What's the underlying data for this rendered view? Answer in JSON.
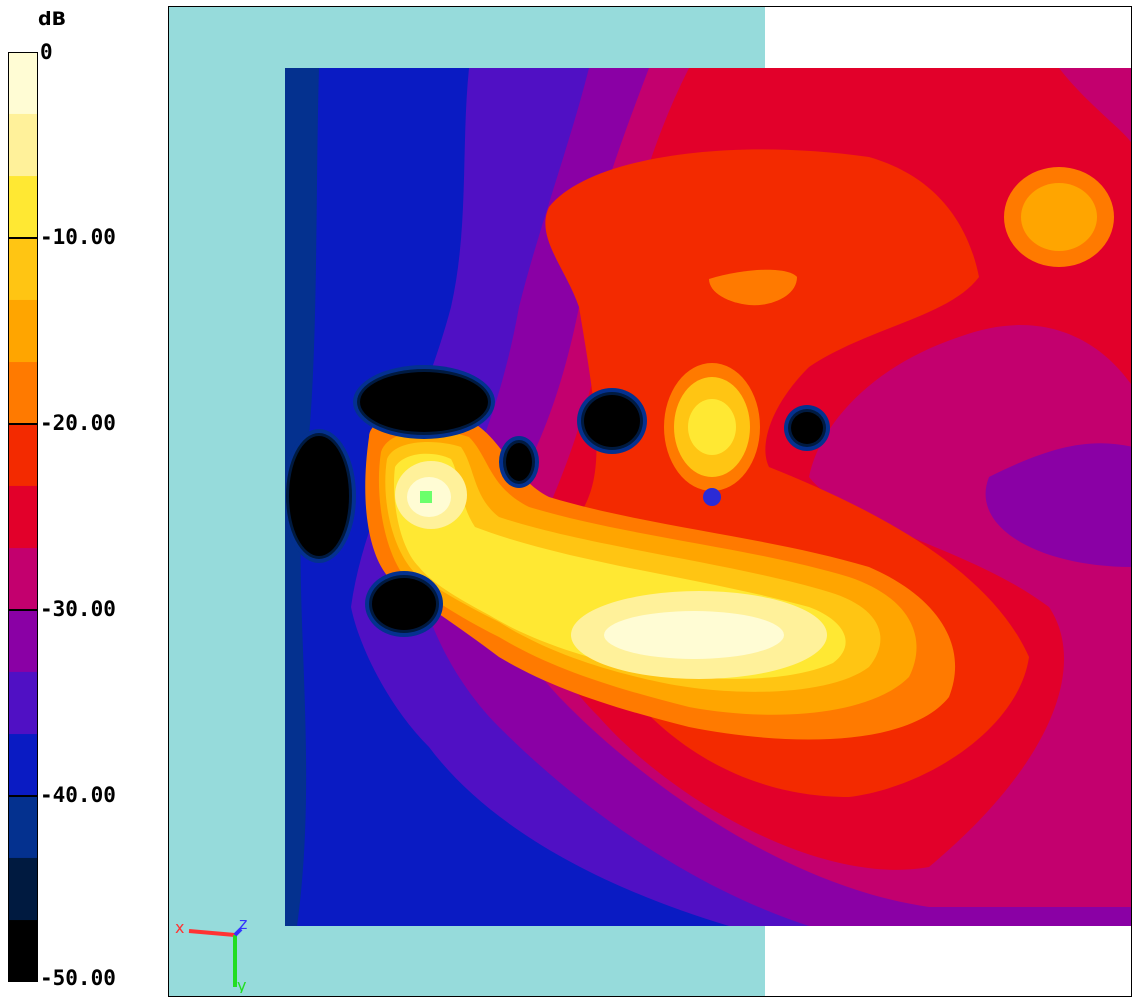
{
  "legend": {
    "unit": "dB",
    "ticks": [
      "0",
      "-10.00",
      "-20.00",
      "-30.00",
      "-40.00",
      "-50.00"
    ],
    "tick_values": [
      0,
      -10,
      -20,
      -30,
      -40,
      -50
    ],
    "min": -50,
    "max": 0,
    "step": 3.333,
    "levels": [
      {
        "from": -3.33,
        "to": 0,
        "color": "#fffcd4"
      },
      {
        "from": -6.67,
        "to": -3.33,
        "color": "#fff19a"
      },
      {
        "from": -10.0,
        "to": -6.67,
        "color": "#ffe833"
      },
      {
        "from": -13.33,
        "to": -10.0,
        "color": "#ffc513"
      },
      {
        "from": -16.67,
        "to": -13.33,
        "color": "#ffa500"
      },
      {
        "from": -20.0,
        "to": -16.67,
        "color": "#ff7a00"
      },
      {
        "from": -23.33,
        "to": -20.0,
        "color": "#f32a00"
      },
      {
        "from": -26.67,
        "to": -23.33,
        "color": "#e2002a"
      },
      {
        "from": -30.0,
        "to": -26.67,
        "color": "#c3006e"
      },
      {
        "from": -33.33,
        "to": -30.0,
        "color": "#8a00a5"
      },
      {
        "from": -36.67,
        "to": -33.33,
        "color": "#5010c4"
      },
      {
        "from": -40.0,
        "to": -36.67,
        "color": "#0a1bc3"
      },
      {
        "from": -43.33,
        "to": -40.0,
        "color": "#04318f"
      },
      {
        "from": -46.67,
        "to": -43.33,
        "color": "#001a40"
      },
      {
        "from": -50.0,
        "to": -46.67,
        "color": "#000000"
      }
    ]
  },
  "chart_data": {
    "type": "heatmap",
    "title": "",
    "xlabel": "",
    "ylabel": "",
    "value_range": [
      -50,
      0
    ],
    "unit": "dB",
    "peaks_db": [
      {
        "location": "near-source (green marker)",
        "value": -1
      },
      {
        "location": "main lobe lower-centre",
        "value": -2
      },
      {
        "location": "small lobe above receiver",
        "value": -8
      },
      {
        "location": "upper-right hotspot",
        "value": -14
      },
      {
        "location": "upper-middle patch",
        "value": -16
      }
    ],
    "nulls_db": [
      {
        "location": "left of source (multiple dark pockets)",
        "value": -50
      },
      {
        "location": "right of receiver (small dark spot)",
        "value": -50
      }
    ],
    "background_db": -40,
    "colors": {
      "backdrop_plate": "#96dbdb",
      "source_marker": "#6bff6b",
      "receiver_marker": "#2b2bd6"
    }
  },
  "triad": {
    "x": "x",
    "y": "y",
    "z": "z",
    "x_color": "#ff3333",
    "y_color": "#22dd22",
    "z_color": "#3333ff"
  }
}
